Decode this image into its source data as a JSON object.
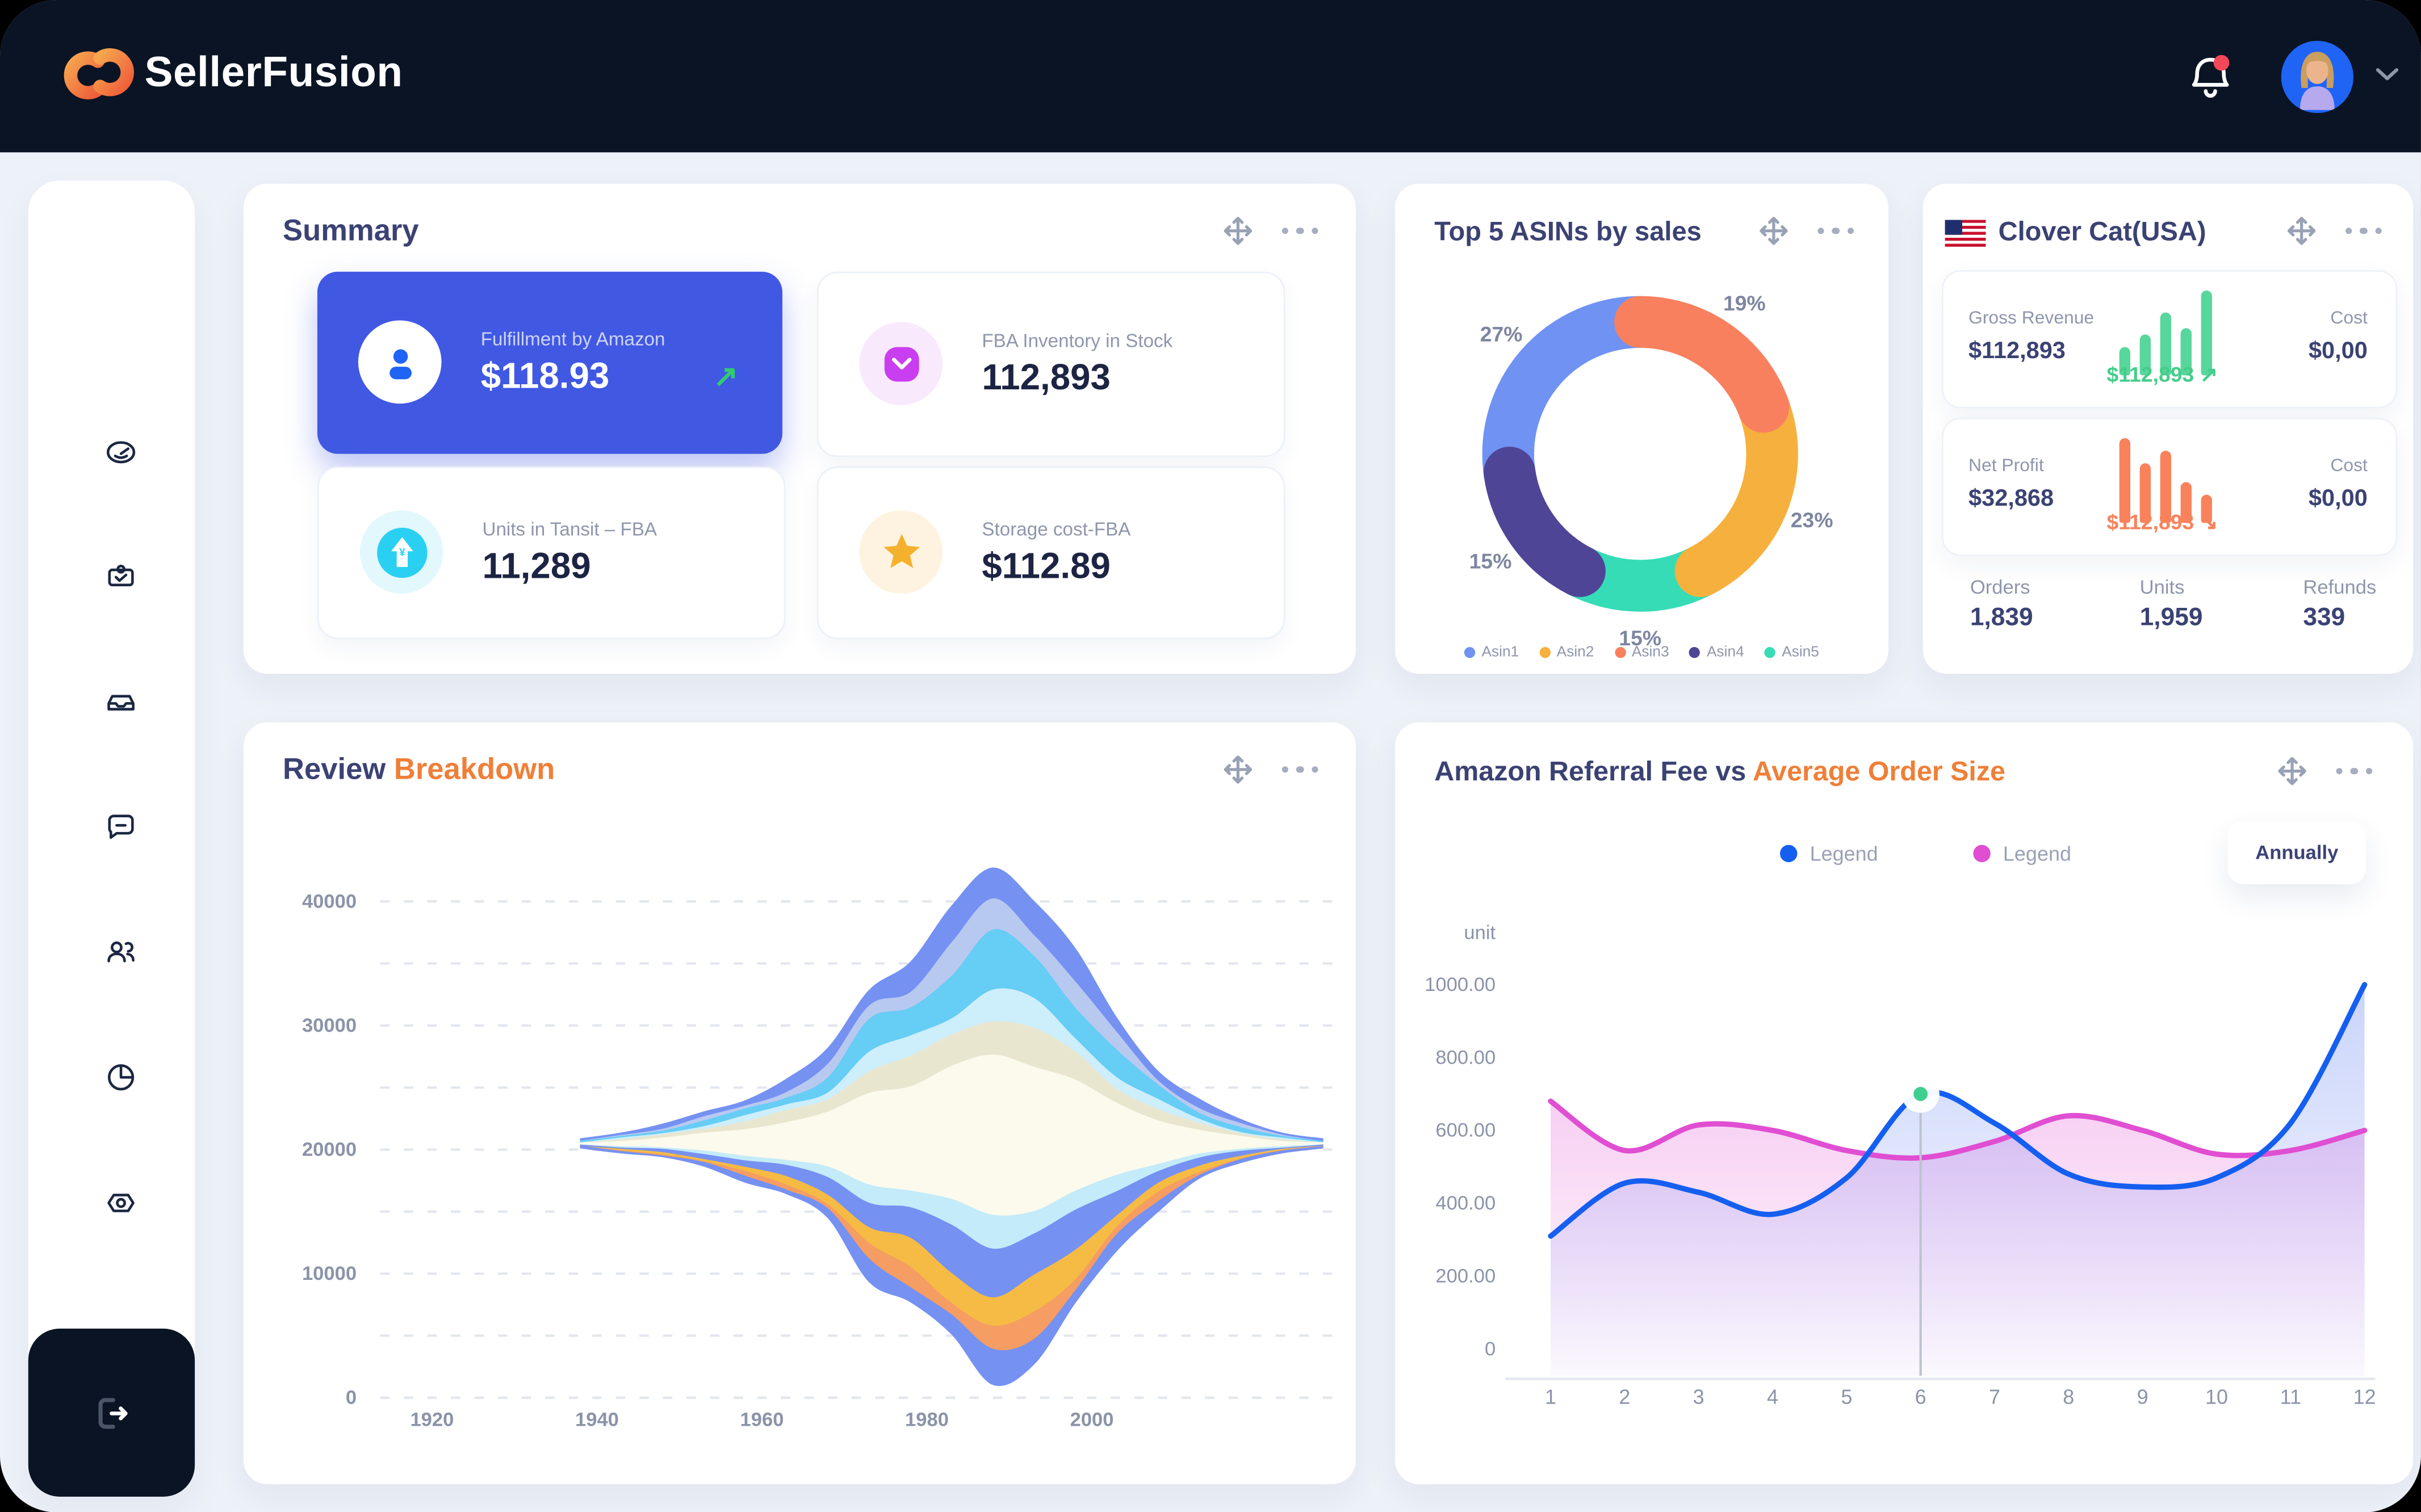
{
  "app": {
    "brand": "SellerFusion"
  },
  "header": {
    "icons": [
      "bell-icon",
      "avatar",
      "chevron-down-icon"
    ],
    "notification_dot_color": "#f5475a"
  },
  "sidebar": {
    "icons": [
      "dashboard-icon",
      "orders-icon",
      "inventory-icon",
      "messages-icon",
      "customers-icon",
      "analytics-icon",
      "settings-icon"
    ],
    "footer_icon": "logout-icon"
  },
  "colors": {
    "primary_blue": "#4158e3",
    "accent_orange": "#ef7f38",
    "navy_text": "#3b4273",
    "green": "#45cd8b",
    "coral": "#f8825b"
  },
  "summary": {
    "title": "Summary",
    "tiles": [
      {
        "label": "Fulfillment by Amazon",
        "value": "$118.93",
        "icon": "user-icon",
        "trend_arrow": "↗"
      },
      {
        "label": "FBA Inventory in Stock",
        "value": "112,893",
        "icon": "mail-icon"
      },
      {
        "label": "Units in Tansit – FBA",
        "value": "11,289",
        "icon": "arrow-up-icon"
      },
      {
        "label": "Storage cost-FBA",
        "value": "$112.89",
        "icon": "star-icon"
      }
    ]
  },
  "top_asins": {
    "title": "Top 5 ASINs by sales"
  },
  "store": {
    "title": "Clover Cat(USA)",
    "flag_icon": "usa-flag-icon",
    "rows": [
      {
        "label": "Gross Revenue",
        "value": "$112,893",
        "bars": [
          18,
          26,
          40,
          30,
          54
        ],
        "bar_color": "#57d79b",
        "trend_value": "$112,893",
        "trend_arrow": "↗",
        "trend_color": "#45cd8b",
        "cost_label": "Cost",
        "cost_value": "$0,00"
      },
      {
        "label": "Net Profit",
        "value": "$32,868",
        "bars": [
          54,
          38,
          46,
          26,
          18
        ],
        "bar_color": "#f8825b",
        "trend_value": "$112,893",
        "trend_arrow": "↘",
        "trend_color": "#f8825b",
        "cost_label": "Cost",
        "cost_value": "$0,00"
      }
    ],
    "stats": [
      {
        "label": "Orders",
        "value": "1,839"
      },
      {
        "label": "Units",
        "value": "1,959"
      },
      {
        "label": "Refunds",
        "value": "339"
      }
    ]
  },
  "review": {
    "title": "Review",
    "title_accent": "Breakdown"
  },
  "referral": {
    "title": "Amazon Referral Fee vs",
    "title_accent": "Average Order Size",
    "legend": [
      {
        "label": "Legend",
        "color": "#155ff0"
      },
      {
        "label": "Legend",
        "color": "#e04ed2"
      }
    ],
    "period": "Annually",
    "unit_label": "unit"
  },
  "chart_data": [
    {
      "type": "pie",
      "donut": true,
      "title": "Top 5 ASINs by sales",
      "segments_clockwise_from_top": [
        {
          "label": "Asin3",
          "value": 19,
          "color": "#f8805f"
        },
        {
          "label": "Asin2",
          "value": 23,
          "color": "#f6b03d"
        },
        {
          "label": "Asin5",
          "value": 15,
          "color": "#36dcb6"
        },
        {
          "label": "Asin4",
          "value": 15,
          "color": "#4f4596"
        },
        {
          "label": "Asin1",
          "value": 27,
          "color": "#6f92f3"
        }
      ],
      "data_labels": [
        "19%",
        "23%",
        "15%",
        "15%",
        "27%"
      ],
      "legend": [
        {
          "label": "Asin1",
          "color": "#6f92f3"
        },
        {
          "label": "Asin2",
          "color": "#f6b03d"
        },
        {
          "label": "Asin3",
          "color": "#f8805f"
        },
        {
          "label": "Asin4",
          "color": "#4f4596"
        },
        {
          "label": "Asin5",
          "color": "#36dcb6"
        }
      ],
      "legend_position": "bottom"
    },
    {
      "type": "area",
      "variant": "streamgraph",
      "title": "Review Breakdown",
      "x_ticks": [
        1920,
        1940,
        1960,
        1980,
        2000
      ],
      "y_ticks": [
        0,
        10000,
        20000,
        30000,
        40000
      ],
      "ylim": [
        0,
        40000
      ],
      "grid": "dashed, every 5000",
      "baseline_value": 20500,
      "years": [
        1938,
        1943,
        1948,
        1953,
        1958,
        1963,
        1968,
        1973,
        1978,
        1983,
        1988,
        1993,
        1998,
        2003,
        2008,
        2013,
        2018,
        2023,
        2028
      ],
      "top_layers": [
        {
          "color": "#fcfaec",
          "values": [
            125,
            250,
            500,
            875,
            1250,
            1750,
            2500,
            4250,
            4750,
            6000,
            7250,
            6500,
            5000,
            3250,
            2000,
            1125,
            625,
            250,
            125
          ]
        },
        {
          "color": "#e9e6d0",
          "values": [
            0,
            125,
            250,
            375,
            625,
            875,
            1125,
            1875,
            2125,
            2625,
            3125,
            2750,
            2125,
            1375,
            875,
            500,
            250,
            125,
            0
          ]
        },
        {
          "color": "#cdeefb",
          "values": [
            0,
            125,
            125,
            250,
            375,
            500,
            750,
            1250,
            1500,
            1875,
            2250,
            2000,
            1500,
            1000,
            625,
            375,
            125,
            125,
            0
          ]
        },
        {
          "color": "#66cdf5",
          "values": [
            125,
            125,
            250,
            375,
            500,
            750,
            1125,
            2250,
            2750,
            3500,
            4250,
            3750,
            2875,
            1875,
            1125,
            625,
            375,
            125,
            125
          ]
        },
        {
          "color": "#b8c9f0",
          "values": [
            0,
            125,
            125,
            250,
            375,
            500,
            750,
            1375,
            1625,
            2125,
            2500,
            2250,
            1750,
            1125,
            625,
            375,
            250,
            125,
            0
          ]
        },
        {
          "color": "#7591f2",
          "values": [
            125,
            125,
            250,
            375,
            500,
            750,
            1125,
            1750,
            2000,
            2500,
            3000,
            2625,
            2000,
            1375,
            875,
            500,
            250,
            125,
            125
          ]
        }
      ],
      "bottom_layers": [
        {
          "color": "#fcfaec",
          "values": [
            125,
            250,
            375,
            625,
            1000,
            1375,
            2000,
            3250,
            3750,
            4750,
            5750,
            5250,
            4000,
            2625,
            1625,
            875,
            500,
            250,
            125
          ]
        },
        {
          "color": "#c3ebfa",
          "values": [
            0,
            125,
            125,
            250,
            375,
            500,
            750,
            1375,
            1625,
            2000,
            2375,
            2125,
            1625,
            1125,
            625,
            375,
            125,
            125,
            0
          ]
        },
        {
          "color": "#7591f2",
          "values": [
            125,
            125,
            250,
            375,
            625,
            875,
            1250,
            2250,
            2625,
            3375,
            4125,
            3750,
            2875,
            1875,
            1125,
            625,
            375,
            125,
            125
          ]
        },
        {
          "color": "#f6bb45",
          "values": [
            0,
            125,
            125,
            250,
            375,
            500,
            875,
            1625,
            1875,
            2375,
            2875,
            2625,
            2000,
            1250,
            750,
            375,
            250,
            125,
            0
          ]
        },
        {
          "color": "#f59d62",
          "values": [
            0,
            0,
            125,
            125,
            250,
            375,
            625,
            1000,
            1250,
            1500,
            1875,
            1625,
            1250,
            875,
            500,
            250,
            125,
            0,
            0
          ]
        },
        {
          "color": "#7591f2",
          "values": [
            125,
            125,
            125,
            250,
            375,
            500,
            750,
            1250,
            1500,
            1875,
            2250,
            2000,
            1500,
            1000,
            625,
            375,
            250,
            125,
            125
          ]
        }
      ]
    },
    {
      "type": "line",
      "title": "Amazon Referral Fee vs Average Order Size",
      "x": [
        1,
        2,
        3,
        4,
        5,
        6,
        7,
        8,
        9,
        10,
        11,
        12
      ],
      "y_tick_labels": [
        "0",
        "200.00",
        "400.00",
        "600.00",
        "800.00",
        "1000.00"
      ],
      "y_tick_values": [
        0,
        200,
        400,
        600,
        800,
        1000
      ],
      "ylim": [
        0,
        1000
      ],
      "ylabel": "unit",
      "series": [
        {
          "name": "Legend",
          "color": "#155ff0",
          "values": [
            310,
            455,
            430,
            370,
            470,
            700,
            620,
            480,
            445,
            470,
            620,
            1000
          ]
        },
        {
          "name": "Legend",
          "color": "#e04ed2",
          "values": [
            680,
            545,
            615,
            600,
            545,
            525,
            570,
            640,
            600,
            535,
            545,
            600
          ]
        }
      ],
      "marker": {
        "series": 0,
        "x": 6,
        "value": 700,
        "color": "#3ecf8e"
      },
      "legend_position": "top"
    }
  ]
}
